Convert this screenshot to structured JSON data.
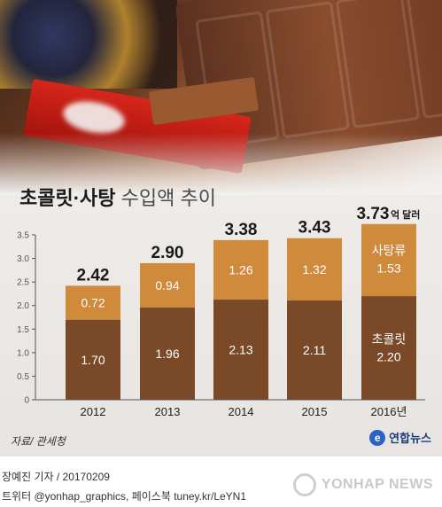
{
  "title": {
    "bold": "초콜릿·사탕",
    "normal": "수입액 추이"
  },
  "colors": {
    "chocolate": "#7a4a28",
    "candy": "#cf8a3c",
    "background": "#ecebea"
  },
  "chart_data": {
    "type": "bar",
    "stacked": true,
    "title": "초콜릿·사탕 수입액 추이",
    "categories": [
      "2012",
      "2013",
      "2014",
      "2015",
      "2016년"
    ],
    "series": [
      {
        "name": "초콜릿",
        "values": [
          1.7,
          1.96,
          2.13,
          2.11,
          2.2
        ]
      },
      {
        "name": "사탕류",
        "values": [
          0.72,
          0.94,
          1.26,
          1.32,
          1.53
        ]
      }
    ],
    "totals": [
      "2.42",
      "2.90",
      "3.38",
      "3.43",
      "3.73"
    ],
    "total_unit": "억 달러",
    "series_labels": {
      "chocolate": "초콜릿",
      "candy": "사탕류"
    },
    "ylim": [
      0,
      3.5
    ],
    "yticks": [
      "0",
      "0.5",
      "1.0",
      "1.5",
      "2.0",
      "2.5",
      "3.0",
      "3.5"
    ],
    "grid": false,
    "legend": "inline on last bar"
  },
  "source": "자료/ 관세청",
  "agency": "연합뉴스",
  "credit_line1": "장예진 기자 / 20170209",
  "credit_line2": "트위터 @yonhap_graphics, 페이스북 tuney.kr/LeYN1",
  "watermark": "YONHAP NEWS"
}
